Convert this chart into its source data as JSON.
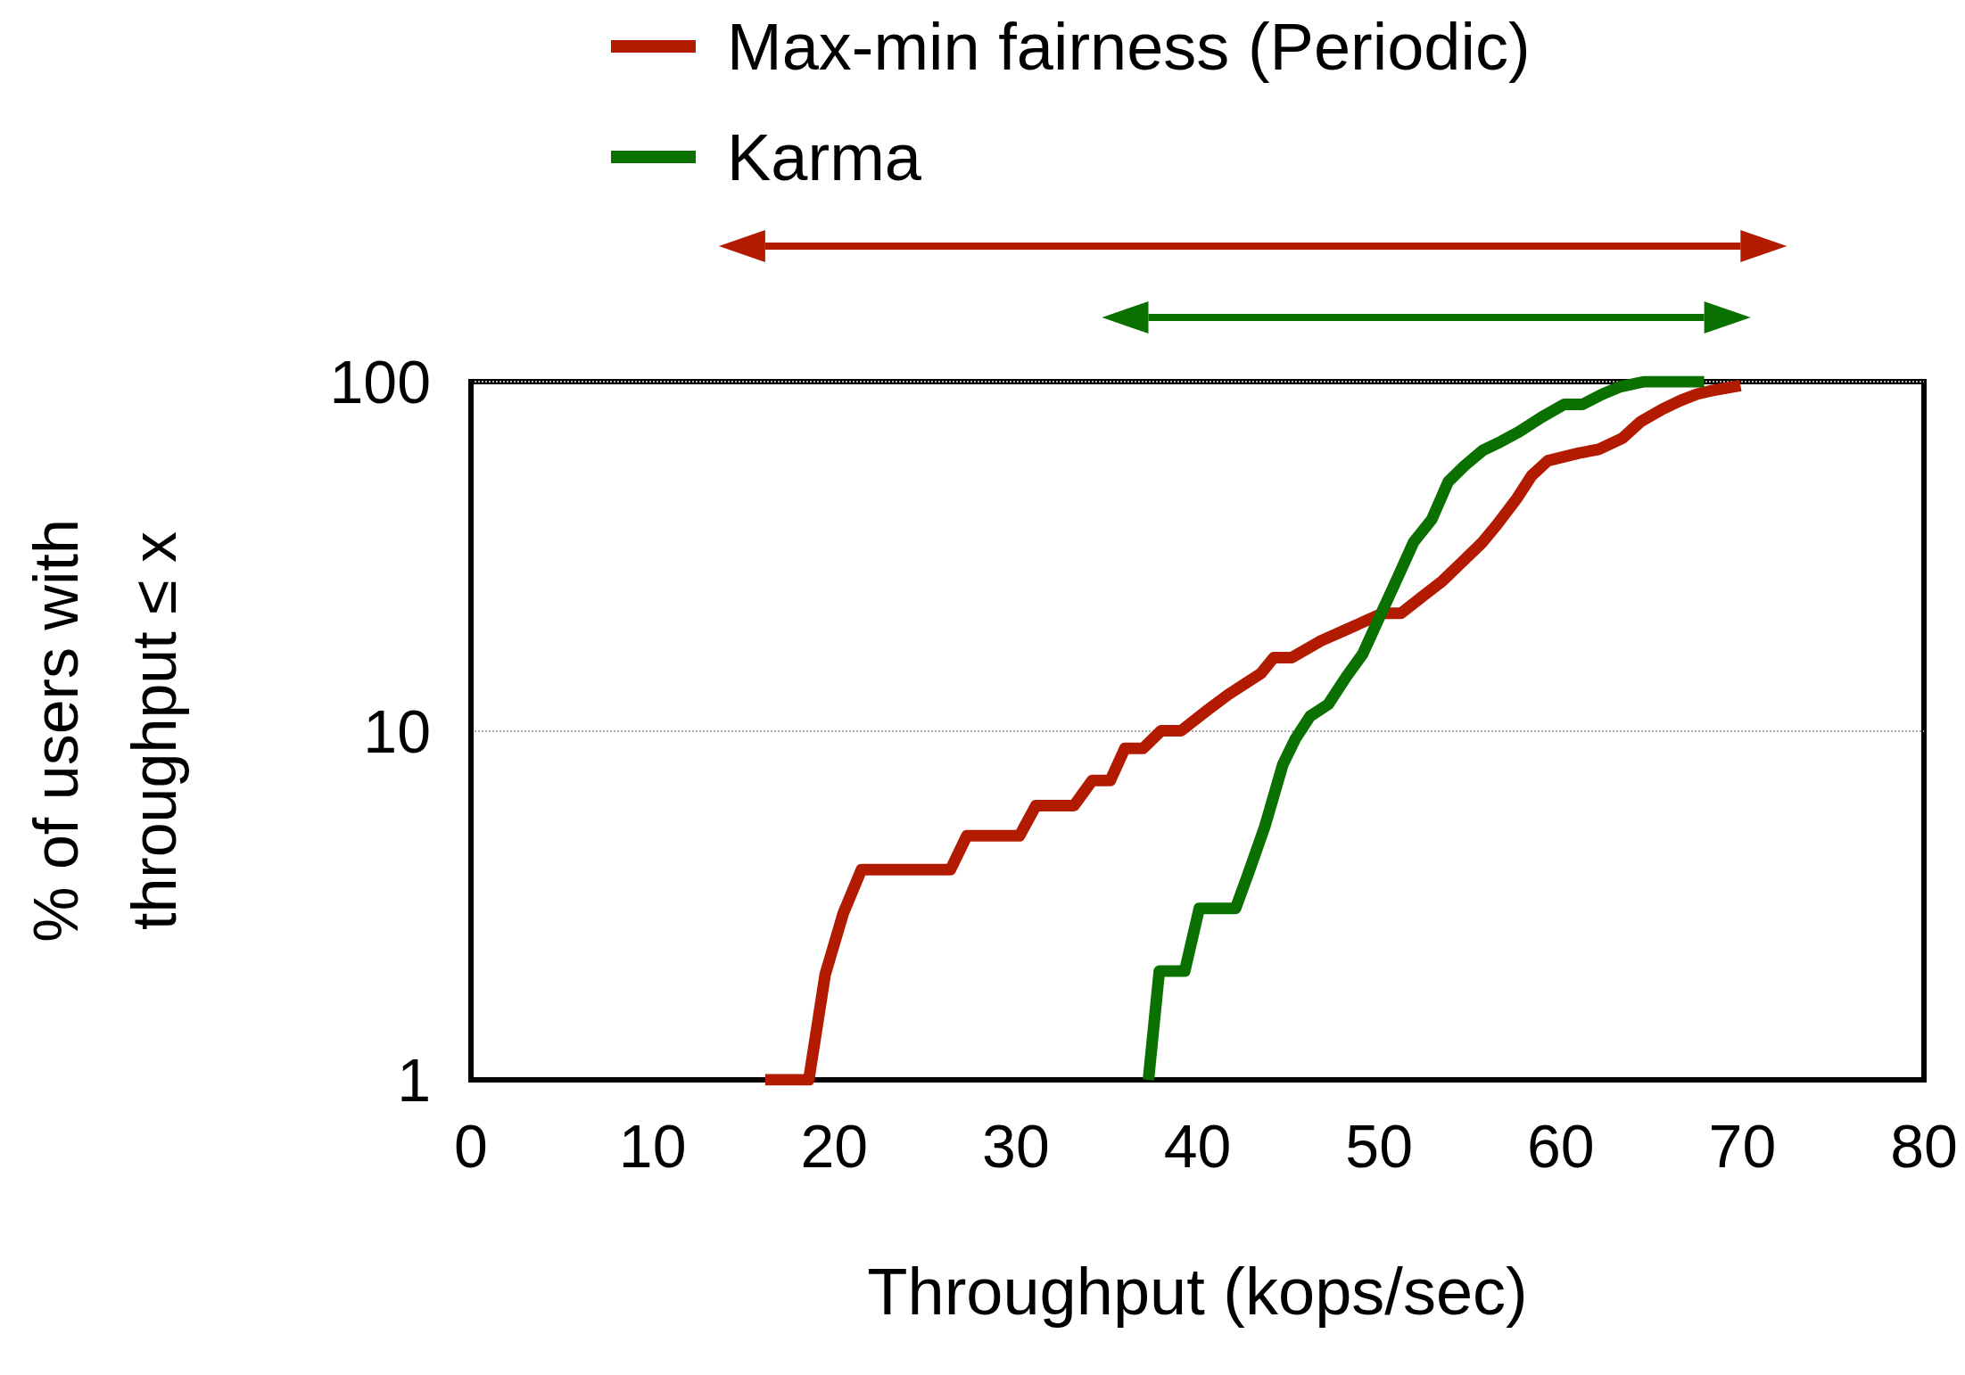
{
  "chart_data": {
    "type": "line",
    "xlabel": "Throughput (kops/sec)",
    "ylabel": "% of users with\nthroughput ≤ x",
    "xlim": [
      0,
      80
    ],
    "xticks": [
      0,
      10,
      20,
      30,
      40,
      50,
      60,
      70,
      80
    ],
    "ylim": [
      1,
      100
    ],
    "yticks": [
      1,
      10,
      100
    ],
    "log": "y",
    "grid": "y",
    "legend": "top",
    "marker": "none",
    "line_style": "solid",
    "series": [
      {
        "name": "Max-min fairness (Periodic)",
        "color": "#b31b00",
        "x": [
          16.2,
          18.6,
          19.5,
          20.5,
          21.5,
          26.4,
          27.3,
          30.2,
          31.1,
          33.2,
          34.2,
          35.2,
          36.0,
          37.0,
          38.0,
          39.1,
          40.5,
          41.7,
          43.5,
          44.2,
          45.2,
          46.8,
          48.2,
          50.2,
          51.2,
          52.5,
          53.5,
          54.5,
          55.7,
          56.5,
          57.6,
          58.4,
          59.3,
          61.0,
          62.1,
          63.4,
          64.4,
          65.6,
          66.6,
          67.5,
          68.3,
          69.9
        ],
        "values": [
          1,
          1,
          2,
          3,
          4,
          4,
          5,
          5,
          6.1,
          6.1,
          7.2,
          7.2,
          8.9,
          8.9,
          10,
          10,
          11.4,
          12.7,
          14.6,
          16.2,
          16.2,
          18.1,
          19.5,
          21.7,
          21.7,
          24.5,
          26.9,
          30.2,
          34.7,
          39,
          46.4,
          53.8,
          59.4,
          62.4,
          64,
          68.9,
          76.8,
          83.4,
          88.3,
          92.1,
          94.2,
          97.5
        ]
      },
      {
        "name": "Karma",
        "color": "#0a7000",
        "x": [
          37.3,
          37.9,
          39.3,
          40.1,
          42.1,
          42.8,
          43.7,
          44.7,
          45.4,
          46.2,
          47.2,
          48.2,
          49.1,
          49.9,
          50.9,
          51.9,
          52.9,
          53.8,
          54.7,
          55.7,
          56.7,
          57.7,
          59.0,
          60.2,
          61.2,
          62.3,
          63.3,
          64.6,
          67.9
        ],
        "values": [
          1,
          2.05,
          2.05,
          3.1,
          3.1,
          3.9,
          5.3,
          8,
          9.5,
          11,
          11.9,
          14.3,
          16.6,
          20.5,
          26.6,
          34.7,
          40.3,
          51.6,
          57.4,
          63.5,
          67.3,
          71.8,
          79.4,
          86.1,
          86.1,
          92.1,
          96.8,
          100,
          100
        ]
      }
    ]
  }
}
